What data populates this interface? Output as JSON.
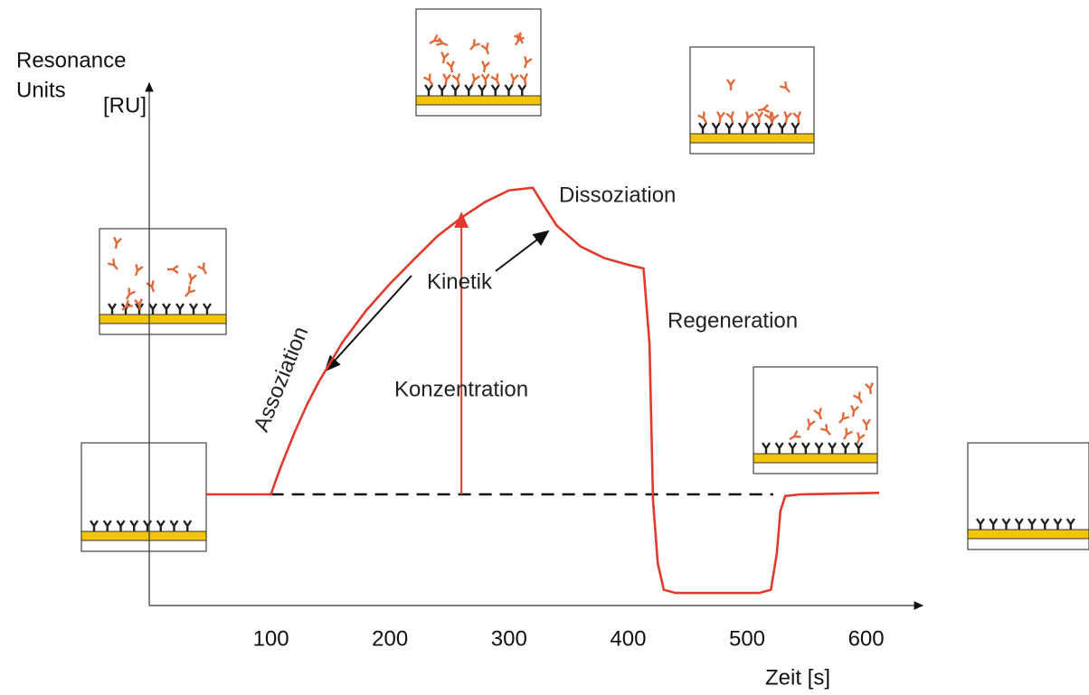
{
  "chart_data": {
    "type": "line",
    "color": "#e03a2e",
    "y_label_lines": [
      "Resonance",
      "Units"
    ],
    "y_unit": "[RU]",
    "x_label": "Zeit [s]",
    "xlim": [
      0,
      650
    ],
    "ylim": [
      0,
      100
    ],
    "xticks": [
      100,
      200,
      300,
      400,
      500,
      600
    ],
    "x": [
      45,
      100,
      105,
      110,
      120,
      130,
      140,
      160,
      180,
      200,
      220,
      240,
      260,
      280,
      300,
      320,
      330,
      340,
      360,
      380,
      400,
      413,
      418,
      421,
      425,
      430,
      440,
      510,
      520,
      525,
      528,
      532,
      545,
      611
    ],
    "values": [
      21.2,
      21.2,
      24.5,
      27.5,
      33.1,
      38.2,
      42.6,
      50.2,
      56.3,
      61.4,
      66,
      70.5,
      74,
      77,
      79.2,
      79.7,
      76,
      72.5,
      68.5,
      66.3,
      65,
      64.3,
      50,
      20,
      8,
      3,
      2.4,
      2.4,
      3,
      10,
      18,
      20.9,
      21.2,
      21.5
    ],
    "reference_line": {
      "y": 21.2,
      "x": [
        100,
        522
      ]
    },
    "concentration_arrow": {
      "x": 260,
      "y": [
        21.2,
        75.5
      ]
    },
    "annotations": [
      "Assoziation",
      "Dissoziation",
      "Kinetik",
      "Regeneration",
      "Konzentration"
    ]
  }
}
